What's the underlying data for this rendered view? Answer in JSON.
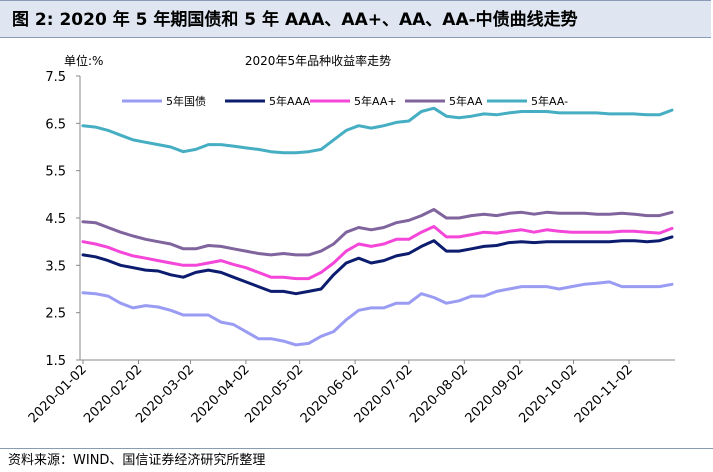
{
  "figure": {
    "title": "图 2:  2020 年 5 年期国债和 5 年 AAA、AA+、AA、AA-中债曲线走势",
    "source": "资料来源：WIND、国信证券经济研究所整理"
  },
  "chart_data": {
    "type": "line",
    "title": "2020年5年品种收益率走势",
    "ylabel": "单位:%",
    "xlabel": "",
    "ylim": [
      1.5,
      7.5
    ],
    "yticks": [
      "7.5",
      "6.5",
      "5.5",
      "4.5",
      "3.5",
      "2.5",
      "1.5"
    ],
    "xticks": [
      "2020-01-02",
      "2020-02-02",
      "2020-03-02",
      "2020-04-02",
      "2020-05-02",
      "2020-06-02",
      "2020-07-02",
      "2020-08-02",
      "2020-09-02",
      "2020-10-02",
      "2020-11-02"
    ],
    "grid": false,
    "legend": "top",
    "x": [
      "2020-01-02",
      "2020-01-09",
      "2020-01-16",
      "2020-01-23",
      "2020-01-30",
      "2020-02-06",
      "2020-02-13",
      "2020-02-20",
      "2020-02-27",
      "2020-03-05",
      "2020-03-12",
      "2020-03-19",
      "2020-03-26",
      "2020-04-02",
      "2020-04-09",
      "2020-04-16",
      "2020-04-23",
      "2020-04-30",
      "2020-05-07",
      "2020-05-14",
      "2020-05-21",
      "2020-05-28",
      "2020-06-04",
      "2020-06-11",
      "2020-06-18",
      "2020-06-25",
      "2020-07-02",
      "2020-07-09",
      "2020-07-16",
      "2020-07-23",
      "2020-07-30",
      "2020-08-06",
      "2020-08-13",
      "2020-08-20",
      "2020-08-27",
      "2020-09-03",
      "2020-09-10",
      "2020-09-17",
      "2020-09-24",
      "2020-10-01",
      "2020-10-08",
      "2020-10-15",
      "2020-10-22",
      "2020-10-29",
      "2020-11-05",
      "2020-11-12",
      "2020-11-19",
      "2020-11-26"
    ],
    "series": [
      {
        "name": "5年国债",
        "color": "#9a9cf3",
        "values": [
          2.92,
          2.9,
          2.85,
          2.7,
          2.6,
          2.65,
          2.62,
          2.55,
          2.45,
          2.45,
          2.45,
          2.3,
          2.25,
          2.1,
          1.95,
          1.95,
          1.9,
          1.82,
          1.85,
          2.0,
          2.1,
          2.35,
          2.55,
          2.6,
          2.6,
          2.7,
          2.7,
          2.9,
          2.82,
          2.7,
          2.75,
          2.85,
          2.85,
          2.95,
          3.0,
          3.05,
          3.05,
          3.05,
          3.0,
          3.05,
          3.1,
          3.12,
          3.15,
          3.05,
          3.05,
          3.05,
          3.05,
          3.1
        ]
      },
      {
        "name": "5年AAA",
        "color": "#0c1c6e",
        "values": [
          3.72,
          3.68,
          3.6,
          3.5,
          3.45,
          3.4,
          3.38,
          3.3,
          3.25,
          3.35,
          3.4,
          3.35,
          3.25,
          3.15,
          3.05,
          2.95,
          2.95,
          2.9,
          2.95,
          3.0,
          3.3,
          3.55,
          3.65,
          3.55,
          3.6,
          3.7,
          3.75,
          3.9,
          4.02,
          3.8,
          3.8,
          3.85,
          3.9,
          3.92,
          3.98,
          4.0,
          3.98,
          4.0,
          4.0,
          4.0,
          4.0,
          4.0,
          4.0,
          4.02,
          4.02,
          4.0,
          4.02,
          4.1
        ]
      },
      {
        "name": "5年AA+",
        "color": "#f446d8",
        "values": [
          4.0,
          3.95,
          3.88,
          3.78,
          3.7,
          3.65,
          3.6,
          3.55,
          3.5,
          3.5,
          3.55,
          3.6,
          3.52,
          3.45,
          3.35,
          3.25,
          3.25,
          3.22,
          3.22,
          3.35,
          3.55,
          3.8,
          3.95,
          3.9,
          3.95,
          4.05,
          4.05,
          4.2,
          4.32,
          4.1,
          4.1,
          4.15,
          4.2,
          4.18,
          4.22,
          4.25,
          4.2,
          4.25,
          4.22,
          4.2,
          4.2,
          4.2,
          4.2,
          4.22,
          4.22,
          4.2,
          4.18,
          4.28
        ]
      },
      {
        "name": "5年AA",
        "color": "#80649e",
        "values": [
          4.42,
          4.4,
          4.3,
          4.2,
          4.12,
          4.05,
          4.0,
          3.95,
          3.85,
          3.85,
          3.92,
          3.9,
          3.85,
          3.8,
          3.75,
          3.72,
          3.75,
          3.72,
          3.72,
          3.8,
          3.95,
          4.2,
          4.3,
          4.25,
          4.3,
          4.4,
          4.45,
          4.55,
          4.68,
          4.5,
          4.5,
          4.55,
          4.58,
          4.55,
          4.6,
          4.62,
          4.58,
          4.62,
          4.6,
          4.6,
          4.6,
          4.58,
          4.58,
          4.6,
          4.58,
          4.55,
          4.55,
          4.62
        ]
      },
      {
        "name": "5年AA-",
        "color": "#45aec3",
        "values": [
          6.45,
          6.42,
          6.35,
          6.25,
          6.15,
          6.1,
          6.05,
          6.0,
          5.9,
          5.95,
          6.05,
          6.05,
          6.02,
          5.98,
          5.95,
          5.9,
          5.88,
          5.88,
          5.9,
          5.95,
          6.15,
          6.35,
          6.45,
          6.4,
          6.45,
          6.52,
          6.55,
          6.75,
          6.82,
          6.65,
          6.62,
          6.65,
          6.7,
          6.68,
          6.72,
          6.75,
          6.75,
          6.75,
          6.72,
          6.72,
          6.72,
          6.72,
          6.7,
          6.7,
          6.7,
          6.68,
          6.68,
          6.78
        ]
      }
    ]
  }
}
